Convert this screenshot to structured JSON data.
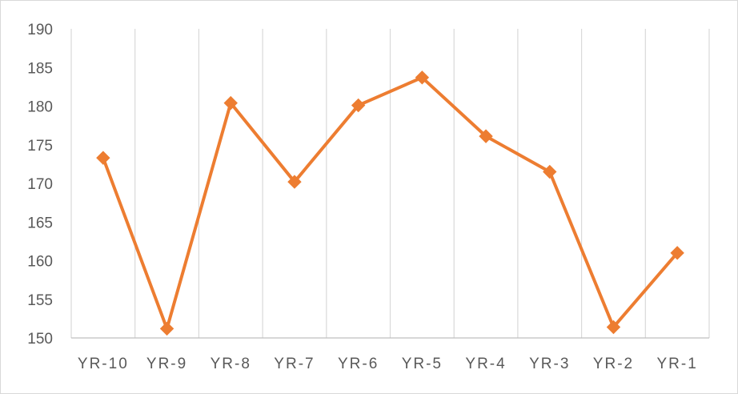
{
  "chart_data": {
    "type": "line",
    "title": "",
    "xlabel": "",
    "ylabel": "",
    "categories": [
      "YR-10",
      "YR-9",
      "YR-8",
      "YR-7",
      "YR-6",
      "YR-5",
      "YR-4",
      "YR-3",
      "YR-2",
      "YR-1"
    ],
    "series": [
      {
        "values": [
          173.3,
          151.2,
          180.4,
          170.2,
          180.1,
          183.7,
          176.1,
          171.5,
          151.4,
          161.0
        ],
        "color": "#ED7D31",
        "marker": "diamond"
      }
    ],
    "ylim": [
      150,
      190
    ],
    "yticks": [
      150,
      155,
      160,
      165,
      170,
      175,
      180,
      185,
      190
    ],
    "grid": {
      "vertical": true,
      "horizontal": false
    },
    "legend": "none"
  },
  "colors": {
    "series": "#ED7D31",
    "grid": "#d9d9d9",
    "axis": "#bfbfbf",
    "text": "#595959"
  }
}
